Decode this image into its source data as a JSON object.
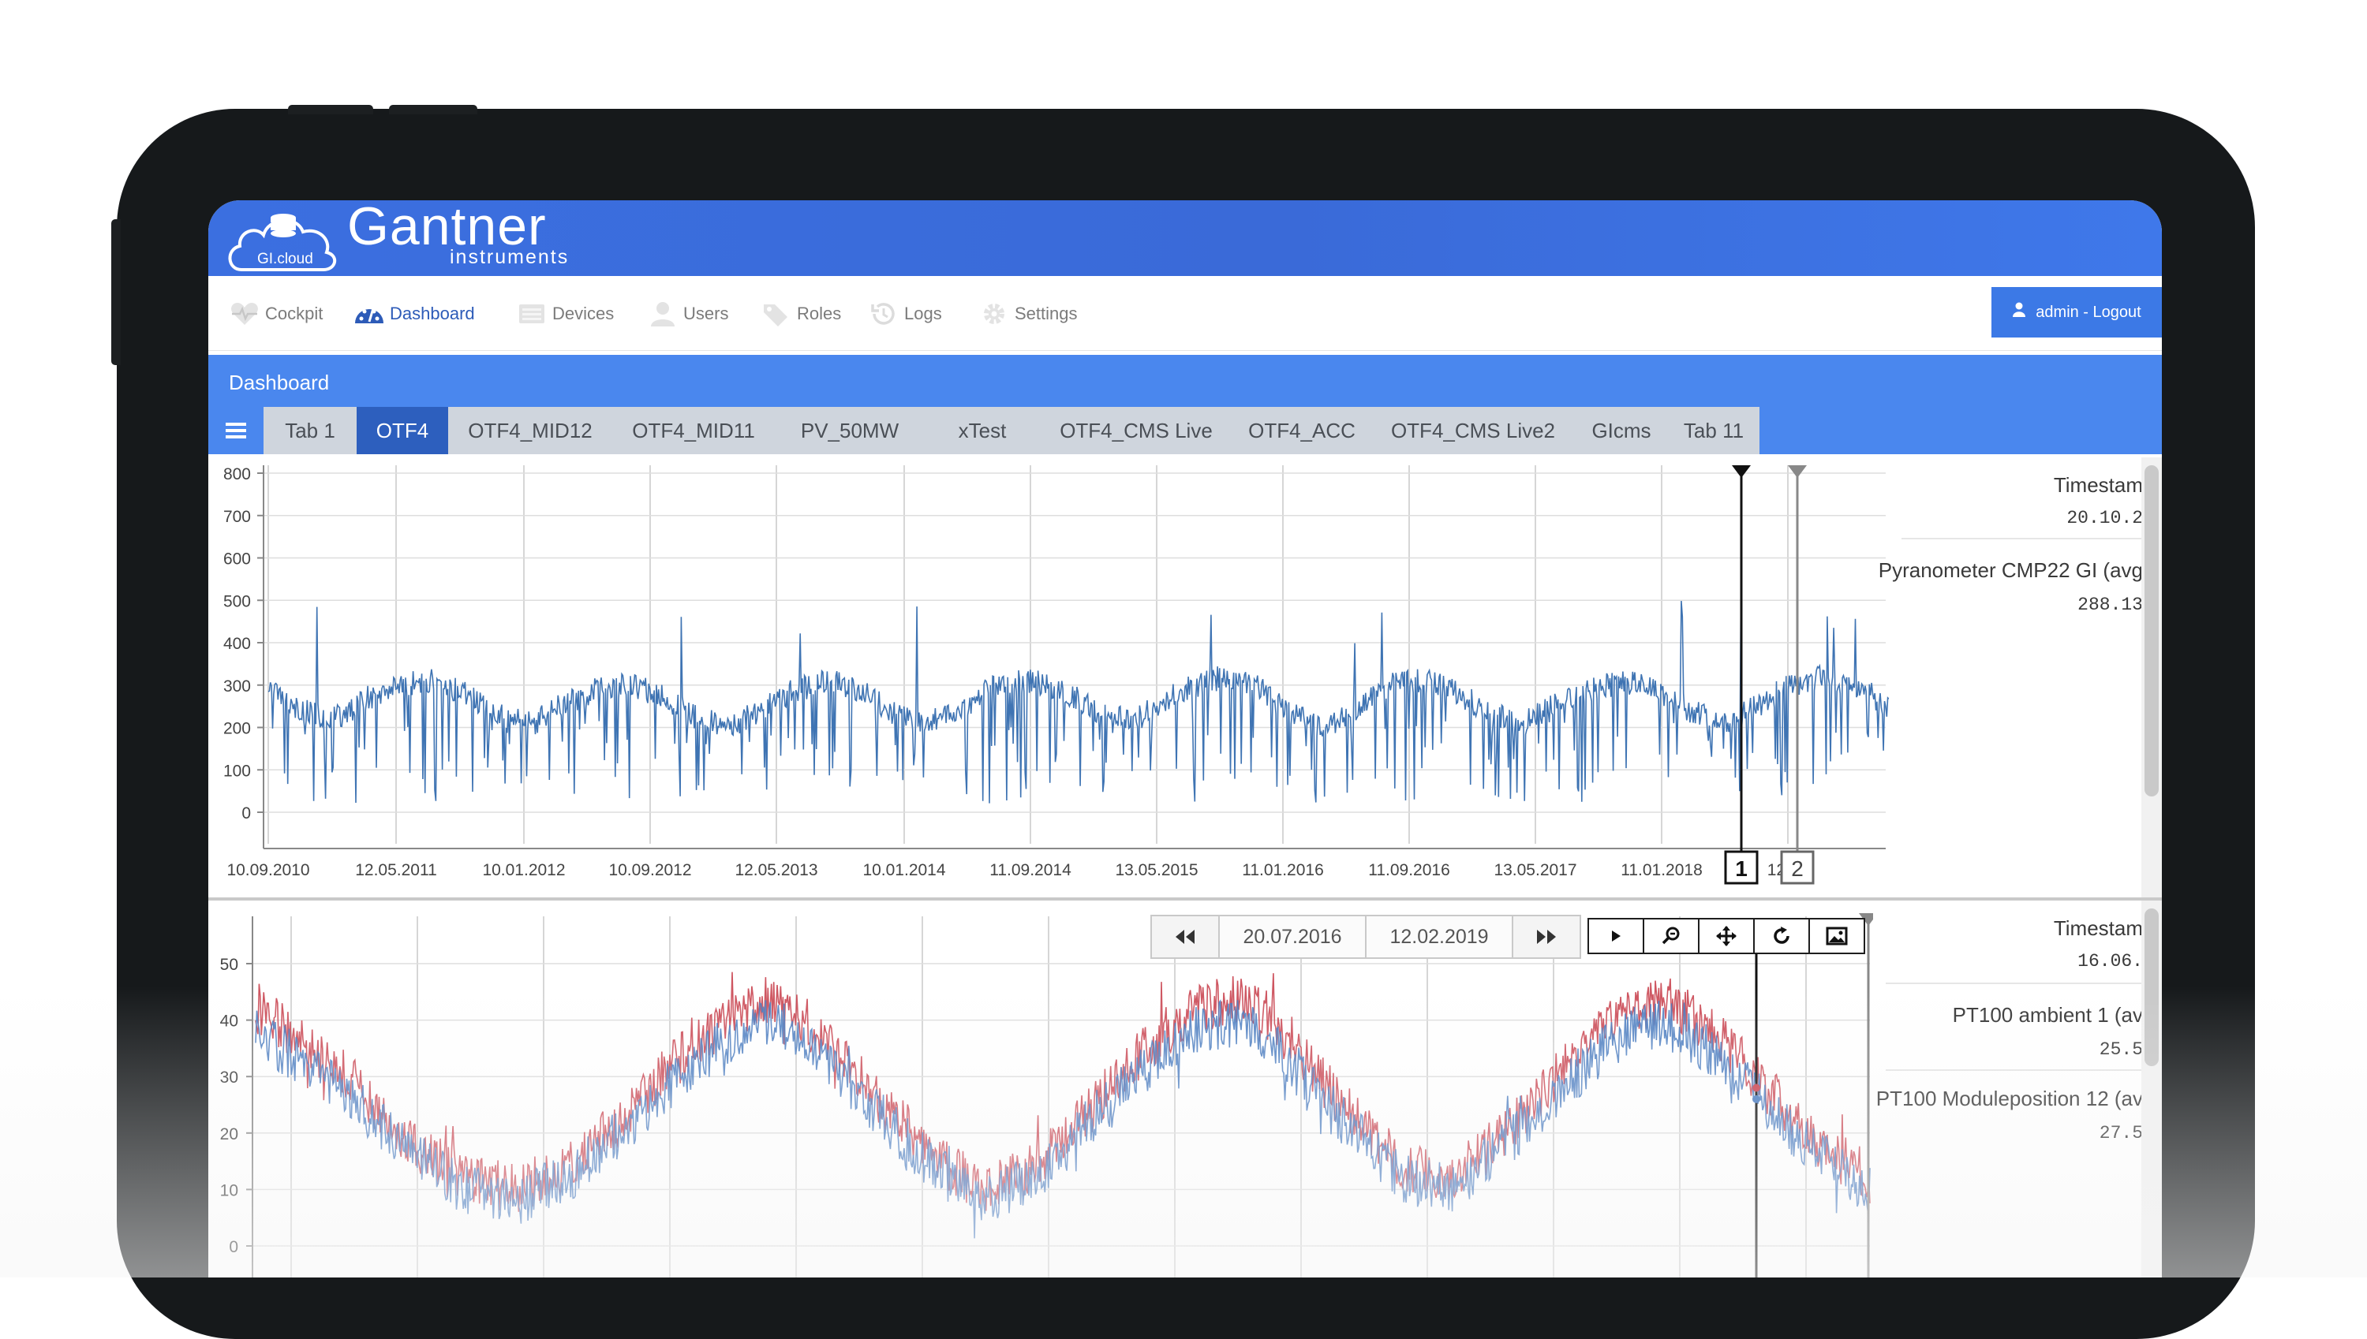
{
  "app": {
    "logo_badge": "GI.cloud",
    "brand_name": "Gantner",
    "brand_sub": "instruments"
  },
  "nav": {
    "items": [
      {
        "label": "Cockpit",
        "icon": "heart-pulse-icon"
      },
      {
        "label": "Dashboard",
        "icon": "speedometer-icon",
        "active": true
      },
      {
        "label": "Devices",
        "icon": "devices-icon"
      },
      {
        "label": "Users",
        "icon": "user-icon"
      },
      {
        "label": "Roles",
        "icon": "tags-icon"
      },
      {
        "label": "Logs",
        "icon": "history-icon"
      },
      {
        "label": "Settings",
        "icon": "gear-icon"
      }
    ],
    "logout_label": "admin - Logout"
  },
  "dashboard": {
    "title": "Dashboard",
    "tabs": [
      "Tab 1",
      "OTF4",
      "OTF4_MID12",
      "OTF4_MID11",
      "PV_50MW",
      "xTest",
      "OTF4_CMS Live",
      "OTF4_ACC",
      "OTF4_CMS Live2",
      "GIcms",
      "Tab 11"
    ],
    "active_tab": "OTF4"
  },
  "panel1": {
    "timestamp_label": "Timestam",
    "timestamp_value": "20.10.2",
    "channel_label": "Pyranometer CMP22 GI (avg",
    "channel_value": "288.13",
    "cursor_labels": [
      "1",
      "2"
    ]
  },
  "panel2": {
    "date_from": "20.07.2016",
    "date_to": "12.02.2019",
    "timestamp_label": "Timestam",
    "timestamp_value": "16.06.",
    "channel1_label": "PT100 ambient 1 (av",
    "channel1_value": "25.5",
    "channel2_label": "PT100 Moduleposition 12 (av",
    "channel2_value": "27.5"
  },
  "chart_data": [
    {
      "type": "line",
      "title": "",
      "xlabel": "",
      "ylabel": "",
      "ylim": [
        0,
        800
      ],
      "yticks": [
        0,
        100,
        200,
        300,
        400,
        500,
        600,
        700,
        800
      ],
      "xticks": [
        "10.09.2010",
        "12.05.2011",
        "10.01.2012",
        "10.09.2012",
        "12.05.2013",
        "10.01.2014",
        "11.09.2014",
        "13.05.2015",
        "11.01.2016",
        "11.09.2016",
        "13.05.2017",
        "11.01.2018",
        "12.09"
      ],
      "grid": true,
      "series": [
        {
          "name": "Pyranometer CMP22 GI (avg",
          "color": "#3f74b3",
          "x": [
            "2010-09",
            "2010-11",
            "2011-01",
            "2011-03",
            "2011-05",
            "2011-07",
            "2011-09",
            "2011-11",
            "2012-01",
            "2012-03",
            "2012-05",
            "2012-07",
            "2012-09",
            "2012-11",
            "2013-01",
            "2013-03",
            "2013-05",
            "2013-07",
            "2013-09",
            "2013-11",
            "2014-01",
            "2014-03",
            "2014-05",
            "2014-07",
            "2014-09",
            "2014-11",
            "2015-01",
            "2015-03",
            "2015-05",
            "2015-07",
            "2015-09",
            "2015-11",
            "2016-01",
            "2016-03",
            "2016-05",
            "2016-07",
            "2016-09",
            "2016-11",
            "2017-01",
            "2017-03",
            "2017-05",
            "2017-07",
            "2017-09",
            "2017-11",
            "2018-01",
            "2018-03",
            "2018-05",
            "2018-07",
            "2018-09",
            "2018-11"
          ],
          "values": [
            300,
            240,
            220,
            270,
            300,
            310,
            280,
            230,
            210,
            260,
            290,
            300,
            270,
            220,
            200,
            250,
            290,
            310,
            280,
            230,
            210,
            250,
            300,
            310,
            290,
            240,
            220,
            260,
            300,
            320,
            290,
            230,
            200,
            250,
            300,
            310,
            280,
            230,
            210,
            260,
            290,
            310,
            290,
            240,
            210,
            250,
            300,
            320,
            300,
            250
          ]
        }
      ]
    },
    {
      "type": "line",
      "title": "",
      "xlabel": "",
      "ylabel": "",
      "ylim": [
        0,
        55
      ],
      "yticks": [
        0,
        10,
        20,
        30,
        40,
        50
      ],
      "grid": true,
      "series": [
        {
          "name": "PT100 Moduleposition 12 (av",
          "color": "#c9424f",
          "x": [
            "2016-07",
            "2016-08",
            "2016-09",
            "2016-10",
            "2016-11",
            "2016-12",
            "2017-01",
            "2017-02",
            "2017-03",
            "2017-04",
            "2017-05",
            "2017-06",
            "2017-07",
            "2017-08",
            "2017-09",
            "2017-10",
            "2017-11",
            "2017-12",
            "2018-01",
            "2018-02",
            "2018-03",
            "2018-04",
            "2018-05",
            "2018-06",
            "2018-07",
            "2018-08",
            "2018-09",
            "2018-10",
            "2018-11",
            "2018-12",
            "2019-01",
            "2019-02"
          ],
          "values": [
            42,
            36,
            28,
            18,
            12,
            10,
            14,
            22,
            32,
            40,
            44,
            36,
            26,
            16,
            10,
            14,
            24,
            34,
            42,
            44,
            34,
            24,
            14,
            12,
            20,
            30,
            40,
            44,
            38,
            28,
            18,
            12
          ]
        },
        {
          "name": "PT100 ambient 1 (av",
          "color": "#4a7cc0",
          "x": [
            "2016-07",
            "2016-08",
            "2016-09",
            "2016-10",
            "2016-11",
            "2016-12",
            "2017-01",
            "2017-02",
            "2017-03",
            "2017-04",
            "2017-05",
            "2017-06",
            "2017-07",
            "2017-08",
            "2017-09",
            "2017-10",
            "2017-11",
            "2017-12",
            "2018-01",
            "2018-02",
            "2018-03",
            "2018-04",
            "2018-05",
            "2018-06",
            "2018-07",
            "2018-08",
            "2018-09",
            "2018-10",
            "2018-11",
            "2018-12",
            "2019-01",
            "2019-02"
          ],
          "values": [
            38,
            32,
            25,
            16,
            10,
            8,
            12,
            20,
            29,
            36,
            40,
            33,
            23,
            14,
            8,
            12,
            22,
            31,
            38,
            40,
            31,
            21,
            12,
            10,
            18,
            27,
            36,
            40,
            34,
            25,
            16,
            10
          ]
        }
      ]
    }
  ]
}
